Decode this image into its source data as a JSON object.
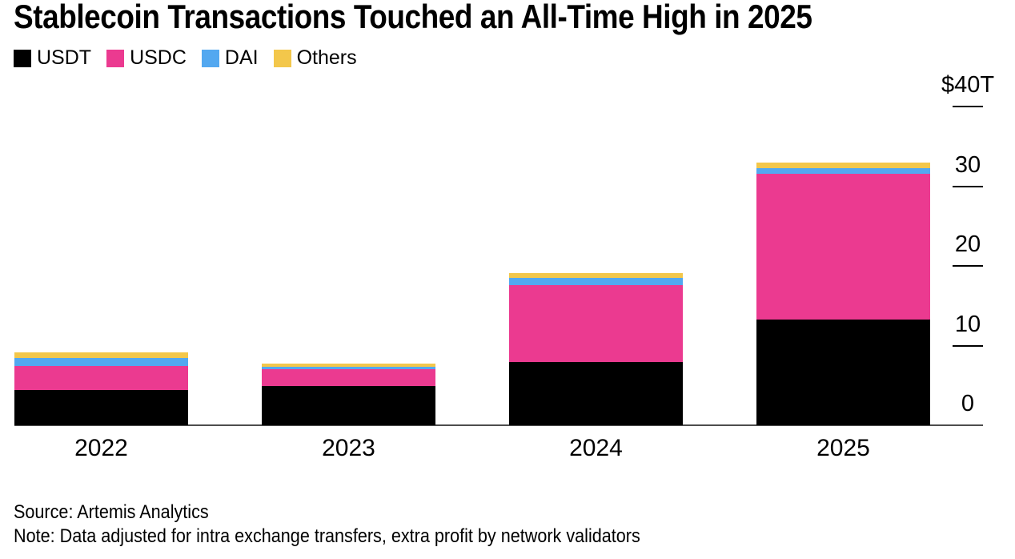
{
  "chart_data": {
    "type": "bar",
    "stacked": true,
    "title": "Stablecoin Transactions Touched an All-Time High in 2025",
    "categories": [
      "2022",
      "2023",
      "2024",
      "2025"
    ],
    "series": [
      {
        "name": "USDT",
        "color": "#000000",
        "values": [
          4.4,
          4.9,
          7.9,
          13.3
        ]
      },
      {
        "name": "USDC",
        "color": "#EB3A90",
        "values": [
          3.0,
          2.1,
          9.7,
          18.3
        ]
      },
      {
        "name": "DAI",
        "color": "#53A8F0",
        "values": [
          1.0,
          0.35,
          0.9,
          0.65
        ]
      },
      {
        "name": "Others",
        "color": "#F3C74B",
        "values": [
          0.8,
          0.35,
          0.6,
          0.75
        ]
      }
    ],
    "totals": [
      9.2,
      7.7,
      19.1,
      33.0
    ],
    "xlabel": "",
    "ylabel": "",
    "y_axis": {
      "unit": "trillion USD",
      "ylim": [
        0,
        40
      ],
      "ticks": [
        {
          "value": 40,
          "label": "$40T"
        },
        {
          "value": 30,
          "label": "30"
        },
        {
          "value": 20,
          "label": "20"
        },
        {
          "value": 10,
          "label": "10"
        },
        {
          "value": 0,
          "label": "0"
        }
      ]
    },
    "legend": {
      "position": "top",
      "entries": [
        "USDT",
        "USDC",
        "DAI",
        "Others"
      ]
    },
    "grid": false
  },
  "footer": {
    "source": "Source: Artemis Analytics",
    "note": "Note: Data adjusted for intra exchange transfers, extra profit by network validators"
  }
}
